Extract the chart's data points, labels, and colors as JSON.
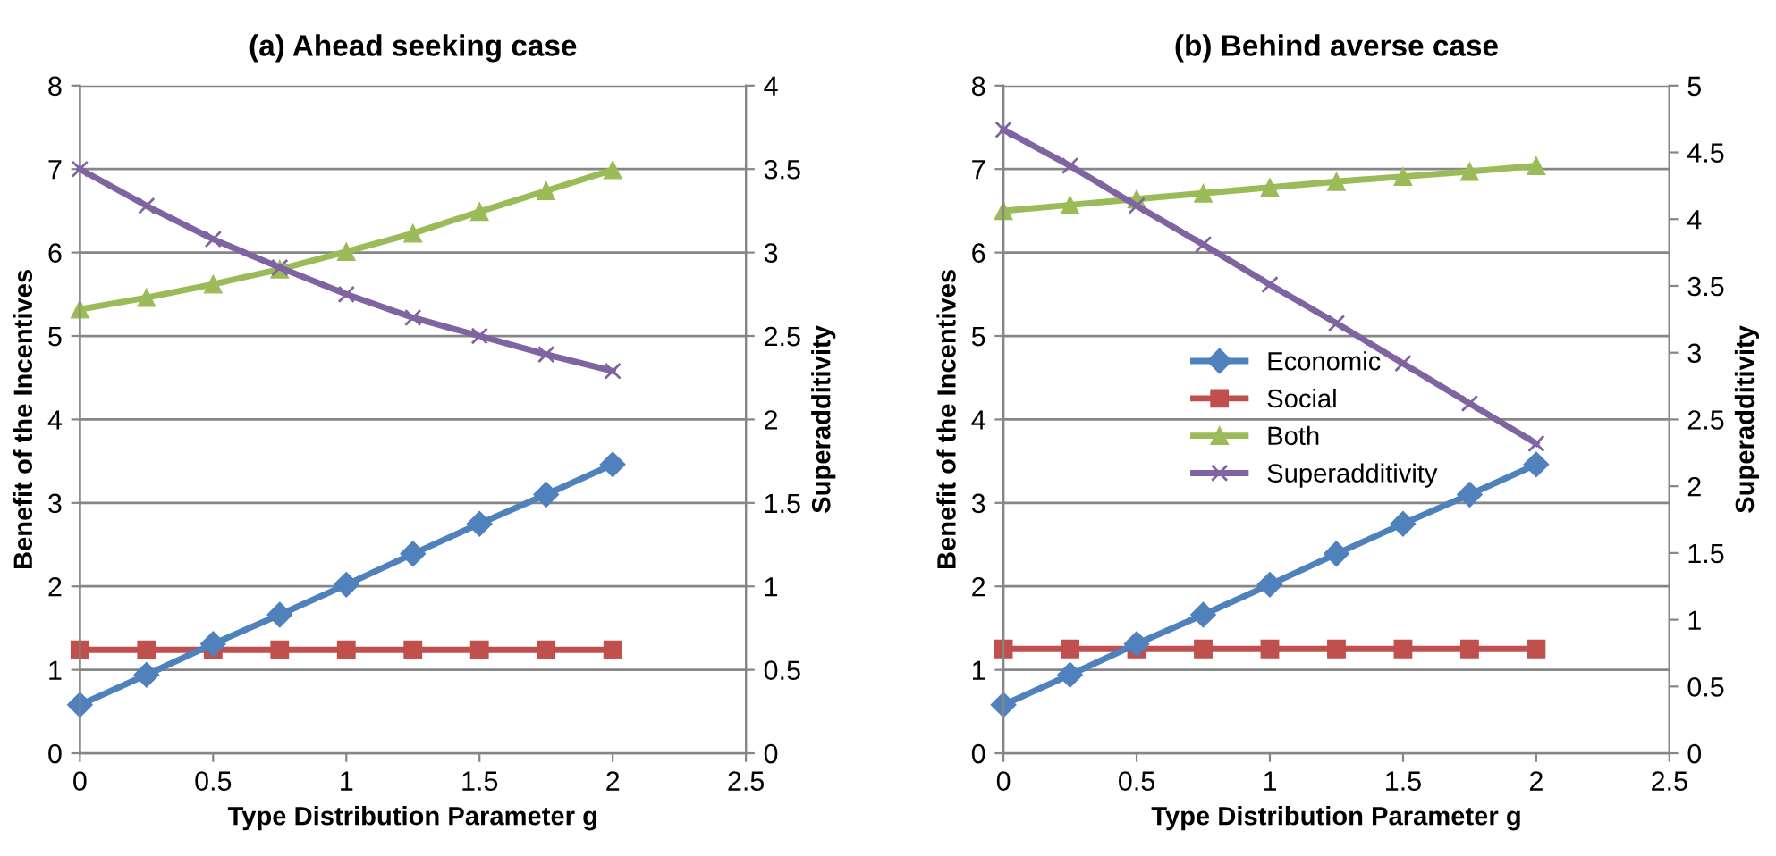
{
  "chart_data": [
    {
      "type": "line",
      "title": "(a) Ahead seeking case",
      "xlabel": "Type Distribution Parameter g",
      "ylabel": "Benefit of the Incentives",
      "y2label": "Superadditivity",
      "x": [
        0,
        0.25,
        0.5,
        0.75,
        1,
        1.25,
        1.5,
        1.75,
        2
      ],
      "xlim": [
        0,
        2.5
      ],
      "xticks": [
        0,
        0.5,
        1,
        1.5,
        2,
        2.5
      ],
      "ylim": [
        0,
        8
      ],
      "yticks": [
        0,
        1,
        2,
        3,
        4,
        5,
        6,
        7,
        8
      ],
      "y2lim": [
        0,
        4
      ],
      "y2ticks": [
        0,
        0.5,
        1,
        1.5,
        2,
        2.5,
        3,
        3.5,
        4
      ],
      "grid": "y",
      "legend": false,
      "series": [
        {
          "color": "#4f81bd",
          "marker": "diamond",
          "values": [
            0.58,
            0.94,
            1.31,
            1.66,
            2.02,
            2.39,
            2.75,
            3.1,
            3.46
          ]
        },
        {
          "color": "#c0504d",
          "marker": "square",
          "values": [
            1.24,
            1.24,
            1.24,
            1.24,
            1.24,
            1.24,
            1.24,
            1.24,
            1.24
          ]
        },
        {
          "color": "#9bbb59",
          "marker": "triangle",
          "values": [
            5.32,
            5.46,
            5.62,
            5.8,
            6.01,
            6.23,
            6.49,
            6.74,
            6.99
          ]
        },
        {
          "color": "#8064a2",
          "marker": "cross",
          "axis": "y2",
          "values": [
            3.5,
            3.28,
            3.08,
            2.91,
            2.75,
            2.61,
            2.5,
            2.39,
            2.29
          ]
        }
      ]
    },
    {
      "type": "line",
      "title": "(b) Behind averse case",
      "xlabel": "Type Distribution Parameter g",
      "ylabel": "Benefit of the Incentives",
      "y2label": "Superadditivity",
      "x": [
        0,
        0.25,
        0.5,
        0.75,
        1,
        1.25,
        1.5,
        1.75,
        2
      ],
      "xlim": [
        0,
        2.5
      ],
      "xticks": [
        0,
        0.5,
        1,
        1.5,
        2,
        2.5
      ],
      "ylim": [
        0,
        8
      ],
      "yticks": [
        0,
        1,
        2,
        3,
        4,
        5,
        6,
        7,
        8
      ],
      "y2lim": [
        0,
        5
      ],
      "y2ticks": [
        0,
        0.5,
        1,
        1.5,
        2,
        2.5,
        3,
        3.5,
        4,
        4.5,
        5
      ],
      "grid": "y",
      "legend": "center left",
      "series": [
        {
          "name": "Economic",
          "color": "#4f81bd",
          "marker": "diamond",
          "values": [
            0.58,
            0.94,
            1.31,
            1.66,
            2.02,
            2.39,
            2.75,
            3.1,
            3.46
          ]
        },
        {
          "name": "Social",
          "color": "#c0504d",
          "marker": "square",
          "values": [
            1.25,
            1.25,
            1.25,
            1.25,
            1.25,
            1.25,
            1.25,
            1.25,
            1.25
          ]
        },
        {
          "name": "Both",
          "color": "#9bbb59",
          "marker": "triangle",
          "values": [
            6.5,
            6.57,
            6.64,
            6.71,
            6.78,
            6.85,
            6.91,
            6.97,
            7.04
          ]
        },
        {
          "name": "Superadditivity",
          "color": "#8064a2",
          "marker": "cross",
          "axis": "y2",
          "values": [
            4.67,
            4.4,
            4.1,
            3.81,
            3.51,
            3.22,
            2.92,
            2.62,
            2.32
          ]
        }
      ]
    }
  ]
}
